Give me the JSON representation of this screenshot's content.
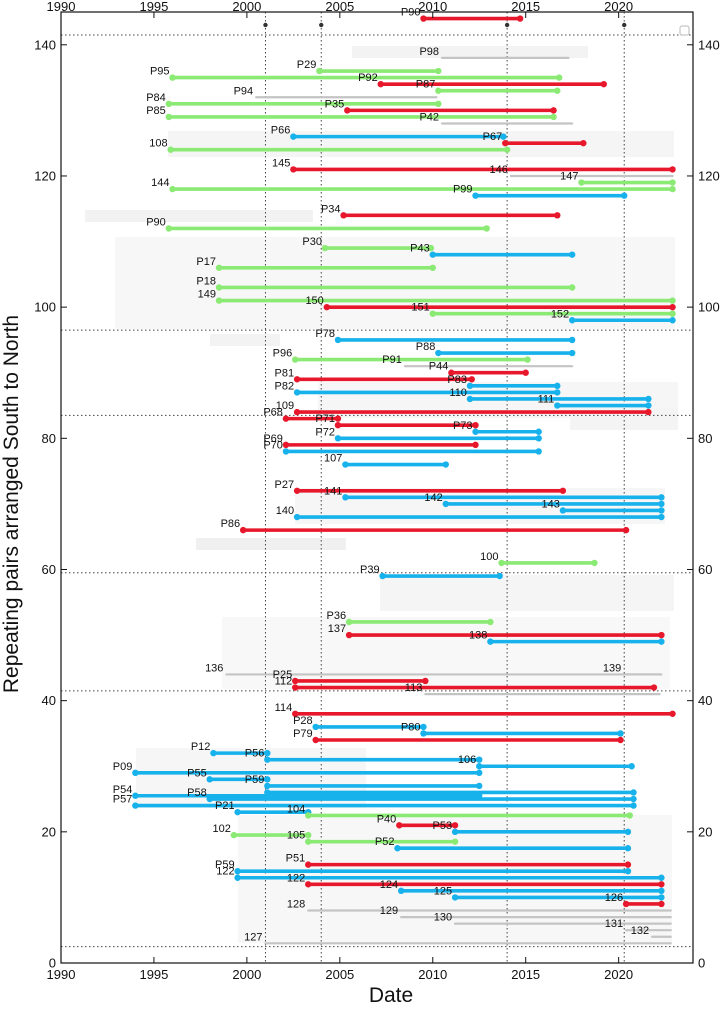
{
  "chart_data": {
    "type": "timeline",
    "title": "",
    "xlabel": "Date",
    "ylabel": "Repeating pairs arranged South to North",
    "xlim": [
      1990,
      2024
    ],
    "ylim": [
      0,
      145
    ],
    "x_ticks": [
      1990,
      1995,
      2000,
      2005,
      2010,
      2015,
      2020
    ],
    "y_ticks": [
      0,
      20,
      40,
      60,
      80,
      100,
      120,
      140
    ],
    "colors": {
      "red": "#e8182c",
      "blue": "#17b2ec",
      "green": "#8bea74",
      "gray": "#c4c4c4"
    },
    "horizontal_dotted_lines": [
      2.5,
      41.5,
      59.5,
      83.5,
      96.5,
      141.5
    ],
    "vertical_dotted_lines": [
      2001,
      2004,
      2014,
      2020.3
    ],
    "pairs": [
      {
        "label": "P90",
        "start": 2009.5,
        "end": 2014.7,
        "y": 144,
        "color": "red"
      },
      {
        "label": "P98",
        "start": 2010.5,
        "end": 2017.3,
        "y": 138,
        "color": "gray"
      },
      {
        "label": "P29",
        "start": 2003.9,
        "end": 2010.3,
        "y": 136,
        "color": "green"
      },
      {
        "label": "P95",
        "start": 1996.0,
        "end": 2016.8,
        "y": 135,
        "color": "green"
      },
      {
        "label": "P92",
        "start": 2007.2,
        "end": 2019.2,
        "y": 134,
        "color": "red"
      },
      {
        "label": "P87",
        "start": 2010.3,
        "end": 2016.7,
        "y": 133,
        "color": "green"
      },
      {
        "label": "P94",
        "start": 2000.5,
        "end": 2010.2,
        "y": 132,
        "color": "gray"
      },
      {
        "label": "P84",
        "start": 1995.8,
        "end": 2010.3,
        "y": 131,
        "color": "green"
      },
      {
        "label": "P35",
        "start": 2005.4,
        "end": 2016.5,
        "y": 130,
        "color": "red"
      },
      {
        "label": "P85",
        "start": 1995.8,
        "end": 2016.5,
        "y": 129,
        "color": "green"
      },
      {
        "label": "P42",
        "start": 2010.5,
        "end": 2017.5,
        "y": 128,
        "color": "gray"
      },
      {
        "label": "P66",
        "start": 2002.5,
        "end": 2013.8,
        "y": 126,
        "color": "blue"
      },
      {
        "label": "P67",
        "start": 2013.9,
        "end": 2018.1,
        "y": 125,
        "color": "red"
      },
      {
        "label": "108",
        "start": 1995.9,
        "end": 2014.0,
        "y": 124,
        "color": "green"
      },
      {
        "label": "145",
        "start": 2002.5,
        "end": 2022.9,
        "y": 121,
        "color": "red"
      },
      {
        "label": "146",
        "start": 2014.2,
        "end": 2022.9,
        "y": 120,
        "color": "gray"
      },
      {
        "label": "147",
        "start": 2018.0,
        "end": 2022.9,
        "y": 119,
        "color": "green"
      },
      {
        "label": "144",
        "start": 1996.0,
        "end": 2022.9,
        "y": 118,
        "color": "green"
      },
      {
        "label": "P99",
        "start": 2012.3,
        "end": 2020.3,
        "y": 117,
        "color": "blue"
      },
      {
        "label": "P34",
        "start": 2005.2,
        "end": 2016.7,
        "y": 114,
        "color": "red"
      },
      {
        "label": "P90",
        "start": 1995.8,
        "end": 2012.9,
        "y": 112,
        "color": "green"
      },
      {
        "label": "P30",
        "start": 2004.2,
        "end": 2009.9,
        "y": 109,
        "color": "green"
      },
      {
        "label": "P43",
        "start": 2010.0,
        "end": 2017.5,
        "y": 108,
        "color": "blue"
      },
      {
        "label": "P17",
        "start": 1998.5,
        "end": 2010.0,
        "y": 106,
        "color": "green"
      },
      {
        "label": "P18",
        "start": 1998.5,
        "end": 2017.5,
        "y": 103,
        "color": "green"
      },
      {
        "label": "149",
        "start": 1998.5,
        "end": 2022.9,
        "y": 101,
        "color": "green"
      },
      {
        "label": "150",
        "start": 2004.3,
        "end": 2022.9,
        "y": 100,
        "color": "red"
      },
      {
        "label": "151",
        "start": 2010.0,
        "end": 2022.9,
        "y": 99,
        "color": "green"
      },
      {
        "label": "152",
        "start": 2017.5,
        "end": 2022.9,
        "y": 98,
        "color": "blue"
      },
      {
        "label": "P78",
        "start": 2004.9,
        "end": 2017.5,
        "y": 95,
        "color": "blue"
      },
      {
        "label": "P88",
        "start": 2010.3,
        "end": 2017.5,
        "y": 93,
        "color": "blue"
      },
      {
        "label": "P96",
        "start": 2002.6,
        "end": 2015.1,
        "y": 92,
        "color": "green"
      },
      {
        "label": "P91",
        "start": 2008.5,
        "end": 2017.5,
        "y": 91,
        "color": "gray"
      },
      {
        "label": "P44",
        "start": 2011.0,
        "end": 2015.0,
        "y": 90,
        "color": "red"
      },
      {
        "label": "P81",
        "start": 2002.7,
        "end": 2012.1,
        "y": 89,
        "color": "red"
      },
      {
        "label": "P83",
        "start": 2012.0,
        "end": 2016.7,
        "y": 88,
        "color": "blue"
      },
      {
        "label": "P82",
        "start": 2002.7,
        "end": 2016.7,
        "y": 87,
        "color": "blue"
      },
      {
        "label": "110",
        "start": 2012.0,
        "end": 2021.6,
        "y": 86,
        "color": "blue"
      },
      {
        "label": "111",
        "start": 2016.7,
        "end": 2021.6,
        "y": 85,
        "color": "blue"
      },
      {
        "label": "109",
        "start": 2002.7,
        "end": 2021.6,
        "y": 84,
        "color": "red"
      },
      {
        "label": "P68",
        "start": 2002.1,
        "end": 2004.9,
        "y": 83,
        "color": "red"
      },
      {
        "label": "P71",
        "start": 2004.9,
        "end": 2012.3,
        "y": 82,
        "color": "red"
      },
      {
        "label": "P73",
        "start": 2012.3,
        "end": 2015.7,
        "y": 81,
        "color": "blue"
      },
      {
        "label": "P72",
        "start": 2004.9,
        "end": 2015.7,
        "y": 80,
        "color": "blue"
      },
      {
        "label": "P69",
        "start": 2002.1,
        "end": 2012.3,
        "y": 79,
        "color": "red"
      },
      {
        "label": "P70",
        "start": 2002.1,
        "end": 2015.7,
        "y": 78,
        "color": "blue"
      },
      {
        "label": "107",
        "start": 2005.3,
        "end": 2010.7,
        "y": 76,
        "color": "blue"
      },
      {
        "label": "P27",
        "start": 2002.7,
        "end": 2017.0,
        "y": 72,
        "color": "red"
      },
      {
        "label": "141",
        "start": 2005.3,
        "end": 2022.3,
        "y": 71,
        "color": "blue"
      },
      {
        "label": "142",
        "start": 2010.7,
        "end": 2022.3,
        "y": 70,
        "color": "blue"
      },
      {
        "label": "143",
        "start": 2017.0,
        "end": 2022.3,
        "y": 69,
        "color": "blue"
      },
      {
        "label": "140",
        "start": 2002.7,
        "end": 2022.3,
        "y": 68,
        "color": "blue"
      },
      {
        "label": "P86",
        "start": 1999.8,
        "end": 2020.4,
        "y": 66,
        "color": "red"
      },
      {
        "label": "100",
        "start": 2013.7,
        "end": 2018.7,
        "y": 61,
        "color": "green"
      },
      {
        "label": "P39",
        "start": 2007.3,
        "end": 2013.6,
        "y": 59,
        "color": "blue"
      },
      {
        "label": "P36",
        "start": 2005.5,
        "end": 2013.1,
        "y": 52,
        "color": "green"
      },
      {
        "label": "137",
        "start": 2005.5,
        "end": 2022.3,
        "y": 50,
        "color": "red"
      },
      {
        "label": "138",
        "start": 2013.1,
        "end": 2022.3,
        "y": 49,
        "color": "blue"
      },
      {
        "label": "136",
        "start": 1998.9,
        "end": 2022.2,
        "y": 44,
        "color": "gray"
      },
      {
        "label": "139",
        "start": 2020.3,
        "end": 2022.3,
        "y": 44,
        "color": "gray"
      },
      {
        "label": "P25",
        "start": 2002.6,
        "end": 2009.6,
        "y": 43,
        "color": "red"
      },
      {
        "label": "112",
        "start": 2002.6,
        "end": 2021.9,
        "y": 42,
        "color": "red"
      },
      {
        "label": "113",
        "start": 2009.6,
        "end": 2022.2,
        "y": 41,
        "color": "gray"
      },
      {
        "label": "114",
        "start": 2002.6,
        "end": 2022.9,
        "y": 38,
        "color": "red"
      },
      {
        "label": "P28",
        "start": 2003.7,
        "end": 2009.5,
        "y": 36,
        "color": "blue"
      },
      {
        "label": "P80",
        "start": 2009.5,
        "end": 2020.1,
        "y": 35,
        "color": "blue"
      },
      {
        "label": "P79",
        "start": 2003.7,
        "end": 2020.1,
        "y": 34,
        "color": "red"
      },
      {
        "label": "P12",
        "start": 1998.2,
        "end": 2001.1,
        "y": 32,
        "color": "blue"
      },
      {
        "label": "P56",
        "start": 2001.1,
        "end": 2012.5,
        "y": 31,
        "color": "blue"
      },
      {
        "label": "106",
        "start": 2012.5,
        "end": 2020.7,
        "y": 30,
        "color": "blue"
      },
      {
        "label": "P09",
        "start": 1994.0,
        "end": 2012.5,
        "y": 29,
        "color": "blue"
      },
      {
        "label": "P55",
        "start": 1998.0,
        "end": 2001.1,
        "y": 28,
        "color": "blue"
      },
      {
        "label": "P59",
        "start": 2001.1,
        "end": 2012.5,
        "y": 27,
        "color": "blue"
      },
      {
        "label": "",
        "start": 2001.1,
        "end": 2020.8,
        "y": 26,
        "color": "blue"
      },
      {
        "label": "P54",
        "start": 1994.0,
        "end": 2012.5,
        "y": 25.5,
        "color": "blue"
      },
      {
        "label": "P58",
        "start": 1998.0,
        "end": 2020.8,
        "y": 25,
        "color": "blue"
      },
      {
        "label": "P57",
        "start": 1994.0,
        "end": 2020.8,
        "y": 24,
        "color": "blue"
      },
      {
        "label": "P21",
        "start": 1999.5,
        "end": 2003.3,
        "y": 23,
        "color": "blue"
      },
      {
        "label": "104",
        "start": 2003.3,
        "end": 2020.6,
        "y": 22.5,
        "color": "green"
      },
      {
        "label": "P40",
        "start": 2008.2,
        "end": 2011.2,
        "y": 21,
        "color": "red"
      },
      {
        "label": "P53",
        "start": 2011.2,
        "end": 2020.5,
        "y": 20,
        "color": "blue"
      },
      {
        "label": "102",
        "start": 1999.3,
        "end": 2003.3,
        "y": 19.5,
        "color": "green"
      },
      {
        "label": "105",
        "start": 2003.3,
        "end": 2011.2,
        "y": 18.5,
        "color": "green"
      },
      {
        "label": "P52",
        "start": 2008.1,
        "end": 2020.5,
        "y": 17.5,
        "color": "blue"
      },
      {
        "label": "P51",
        "start": 2003.3,
        "end": 2020.5,
        "y": 15,
        "color": "red"
      },
      {
        "label": "P59",
        "start": 1999.5,
        "end": 2020.5,
        "y": 14,
        "color": "blue"
      },
      {
        "label": "122",
        "start": 1999.5,
        "end": 2022.3,
        "y": 13,
        "color": "blue"
      },
      {
        "label": "122",
        "start": 2003.3,
        "end": 2022.3,
        "y": 12,
        "color": "red"
      },
      {
        "label": "124",
        "start": 2008.3,
        "end": 2022.3,
        "y": 11,
        "color": "blue"
      },
      {
        "label": "125",
        "start": 2011.2,
        "end": 2022.3,
        "y": 10,
        "color": "blue"
      },
      {
        "label": "126",
        "start": 2020.4,
        "end": 2022.3,
        "y": 9,
        "color": "red"
      },
      {
        "label": "128",
        "start": 2003.3,
        "end": 2022.8,
        "y": 8,
        "color": "gray"
      },
      {
        "label": "129",
        "start": 2008.3,
        "end": 2022.8,
        "y": 7,
        "color": "gray"
      },
      {
        "label": "130",
        "start": 2011.2,
        "end": 2022.8,
        "y": 6,
        "color": "gray"
      },
      {
        "label": "131",
        "start": 2020.4,
        "end": 2022.8,
        "y": 5,
        "color": "gray"
      },
      {
        "label": "132",
        "start": 2021.8,
        "end": 2022.8,
        "y": 4,
        "color": "gray"
      },
      {
        "label": "127",
        "start": 2001.0,
        "end": 2022.8,
        "y": 3,
        "color": "gray"
      }
    ]
  }
}
